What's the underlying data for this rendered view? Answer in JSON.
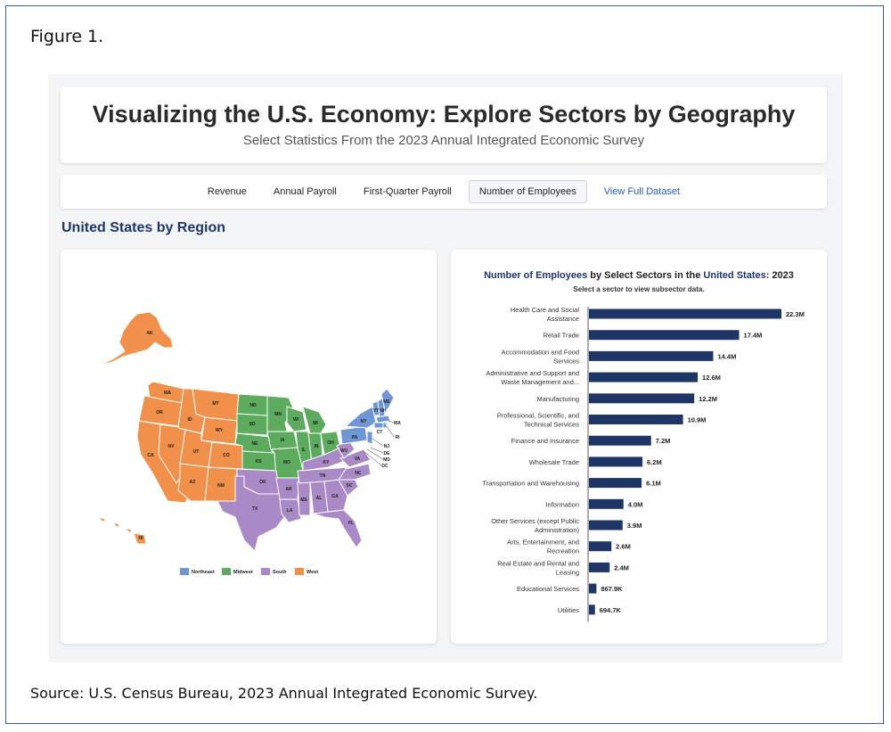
{
  "figure_label": "Figure 1.",
  "source": "Source: U.S. Census Bureau, 2023 Annual Integrated Economic Survey.",
  "header": {
    "title": "Visualizing the U.S. Economy: Explore Sectors by Geography",
    "subtitle": "Select Statistics From the 2023 Annual Integrated Economic Survey"
  },
  "tabs": [
    {
      "label": "Revenue",
      "active": false
    },
    {
      "label": "Annual Payroll",
      "active": false
    },
    {
      "label": "First-Quarter Payroll",
      "active": false
    },
    {
      "label": "Number of Employees",
      "active": true
    },
    {
      "label": "View Full Dataset",
      "active": false
    }
  ],
  "section_heading": "United States by Region",
  "map": {
    "legend": [
      {
        "label": "Northeast",
        "color": "#6f97d6"
      },
      {
        "label": "Midwest",
        "color": "#5cab5e"
      },
      {
        "label": "South",
        "color": "#a98ac6"
      },
      {
        "label": "West",
        "color": "#f0904a"
      }
    ],
    "state_labels": [
      "AK",
      "HI",
      "WA",
      "OR",
      "CA",
      "NV",
      "ID",
      "MT",
      "WY",
      "UT",
      "AZ",
      "CO",
      "NM",
      "ND",
      "SD",
      "NE",
      "KS",
      "MN",
      "IA",
      "MO",
      "WI",
      "IL",
      "MI",
      "IN",
      "OH",
      "OK",
      "TX",
      "AR",
      "LA",
      "MS",
      "AL",
      "TN",
      "KY",
      "GA",
      "FL",
      "SC",
      "NC",
      "VA",
      "WV",
      "ME",
      "VT",
      "NH",
      "NY",
      "PA",
      "MA",
      "RI",
      "CT",
      "NJ",
      "DE",
      "MD",
      "DC"
    ]
  },
  "chart_title": {
    "prefix": "Number of Employees",
    "middle": " by Select Sectors in the ",
    "place": "United States",
    "suffix": ": 2023"
  },
  "chart_subtitle": "Select a sector to view subsector data.",
  "chart_data": {
    "type": "bar",
    "orientation": "horizontal",
    "bar_color": "#1e3566",
    "categories": [
      "Health Care and Social Assistance",
      "Retail Trade",
      "Accommodation and Food Services",
      "Administrative and Support and Waste Management and...",
      "Manufacturing",
      "Professional, Scientific, and Technical Services",
      "Finance and Insurance",
      "Wholesale Trade",
      "Transportation and Warehousing",
      "Information",
      "Other Services (except Public Administration)",
      "Arts, Entertainment, and Recreation",
      "Real Estate and Rental and Leasing",
      "Educational Services",
      "Utilities"
    ],
    "category_lines": [
      [
        "Health Care and Social",
        "Assistance"
      ],
      [
        "Retail Trade"
      ],
      [
        "Accommodation and Food",
        "Services"
      ],
      [
        "Administrative and Support and",
        "Waste Management and..."
      ],
      [
        "Manufacturing"
      ],
      [
        "Professional, Scientific, and",
        "Technical Services"
      ],
      [
        "Finance and Insurance"
      ],
      [
        "Wholesale Trade"
      ],
      [
        "Transportation and Warehousing"
      ],
      [
        "Information"
      ],
      [
        "Other Services (except Public",
        "Administration)"
      ],
      [
        "Arts, Entertainment, and",
        "Recreation"
      ],
      [
        "Real Estate and Rental and",
        "Leasing"
      ],
      [
        "Educational Services"
      ],
      [
        "Utilities"
      ]
    ],
    "values": [
      22300000,
      17400000,
      14400000,
      12600000,
      12200000,
      10900000,
      7200000,
      6200000,
      6100000,
      4000000,
      3900000,
      2600000,
      2400000,
      867900,
      694700
    ],
    "data_labels": [
      "22.3M",
      "17.4M",
      "14.4M",
      "12.6M",
      "12.2M",
      "10.9M",
      "7.2M",
      "6.2M",
      "6.1M",
      "4.0M",
      "3.9M",
      "2.6M",
      "2.4M",
      "867.9K",
      "694.7K"
    ]
  }
}
